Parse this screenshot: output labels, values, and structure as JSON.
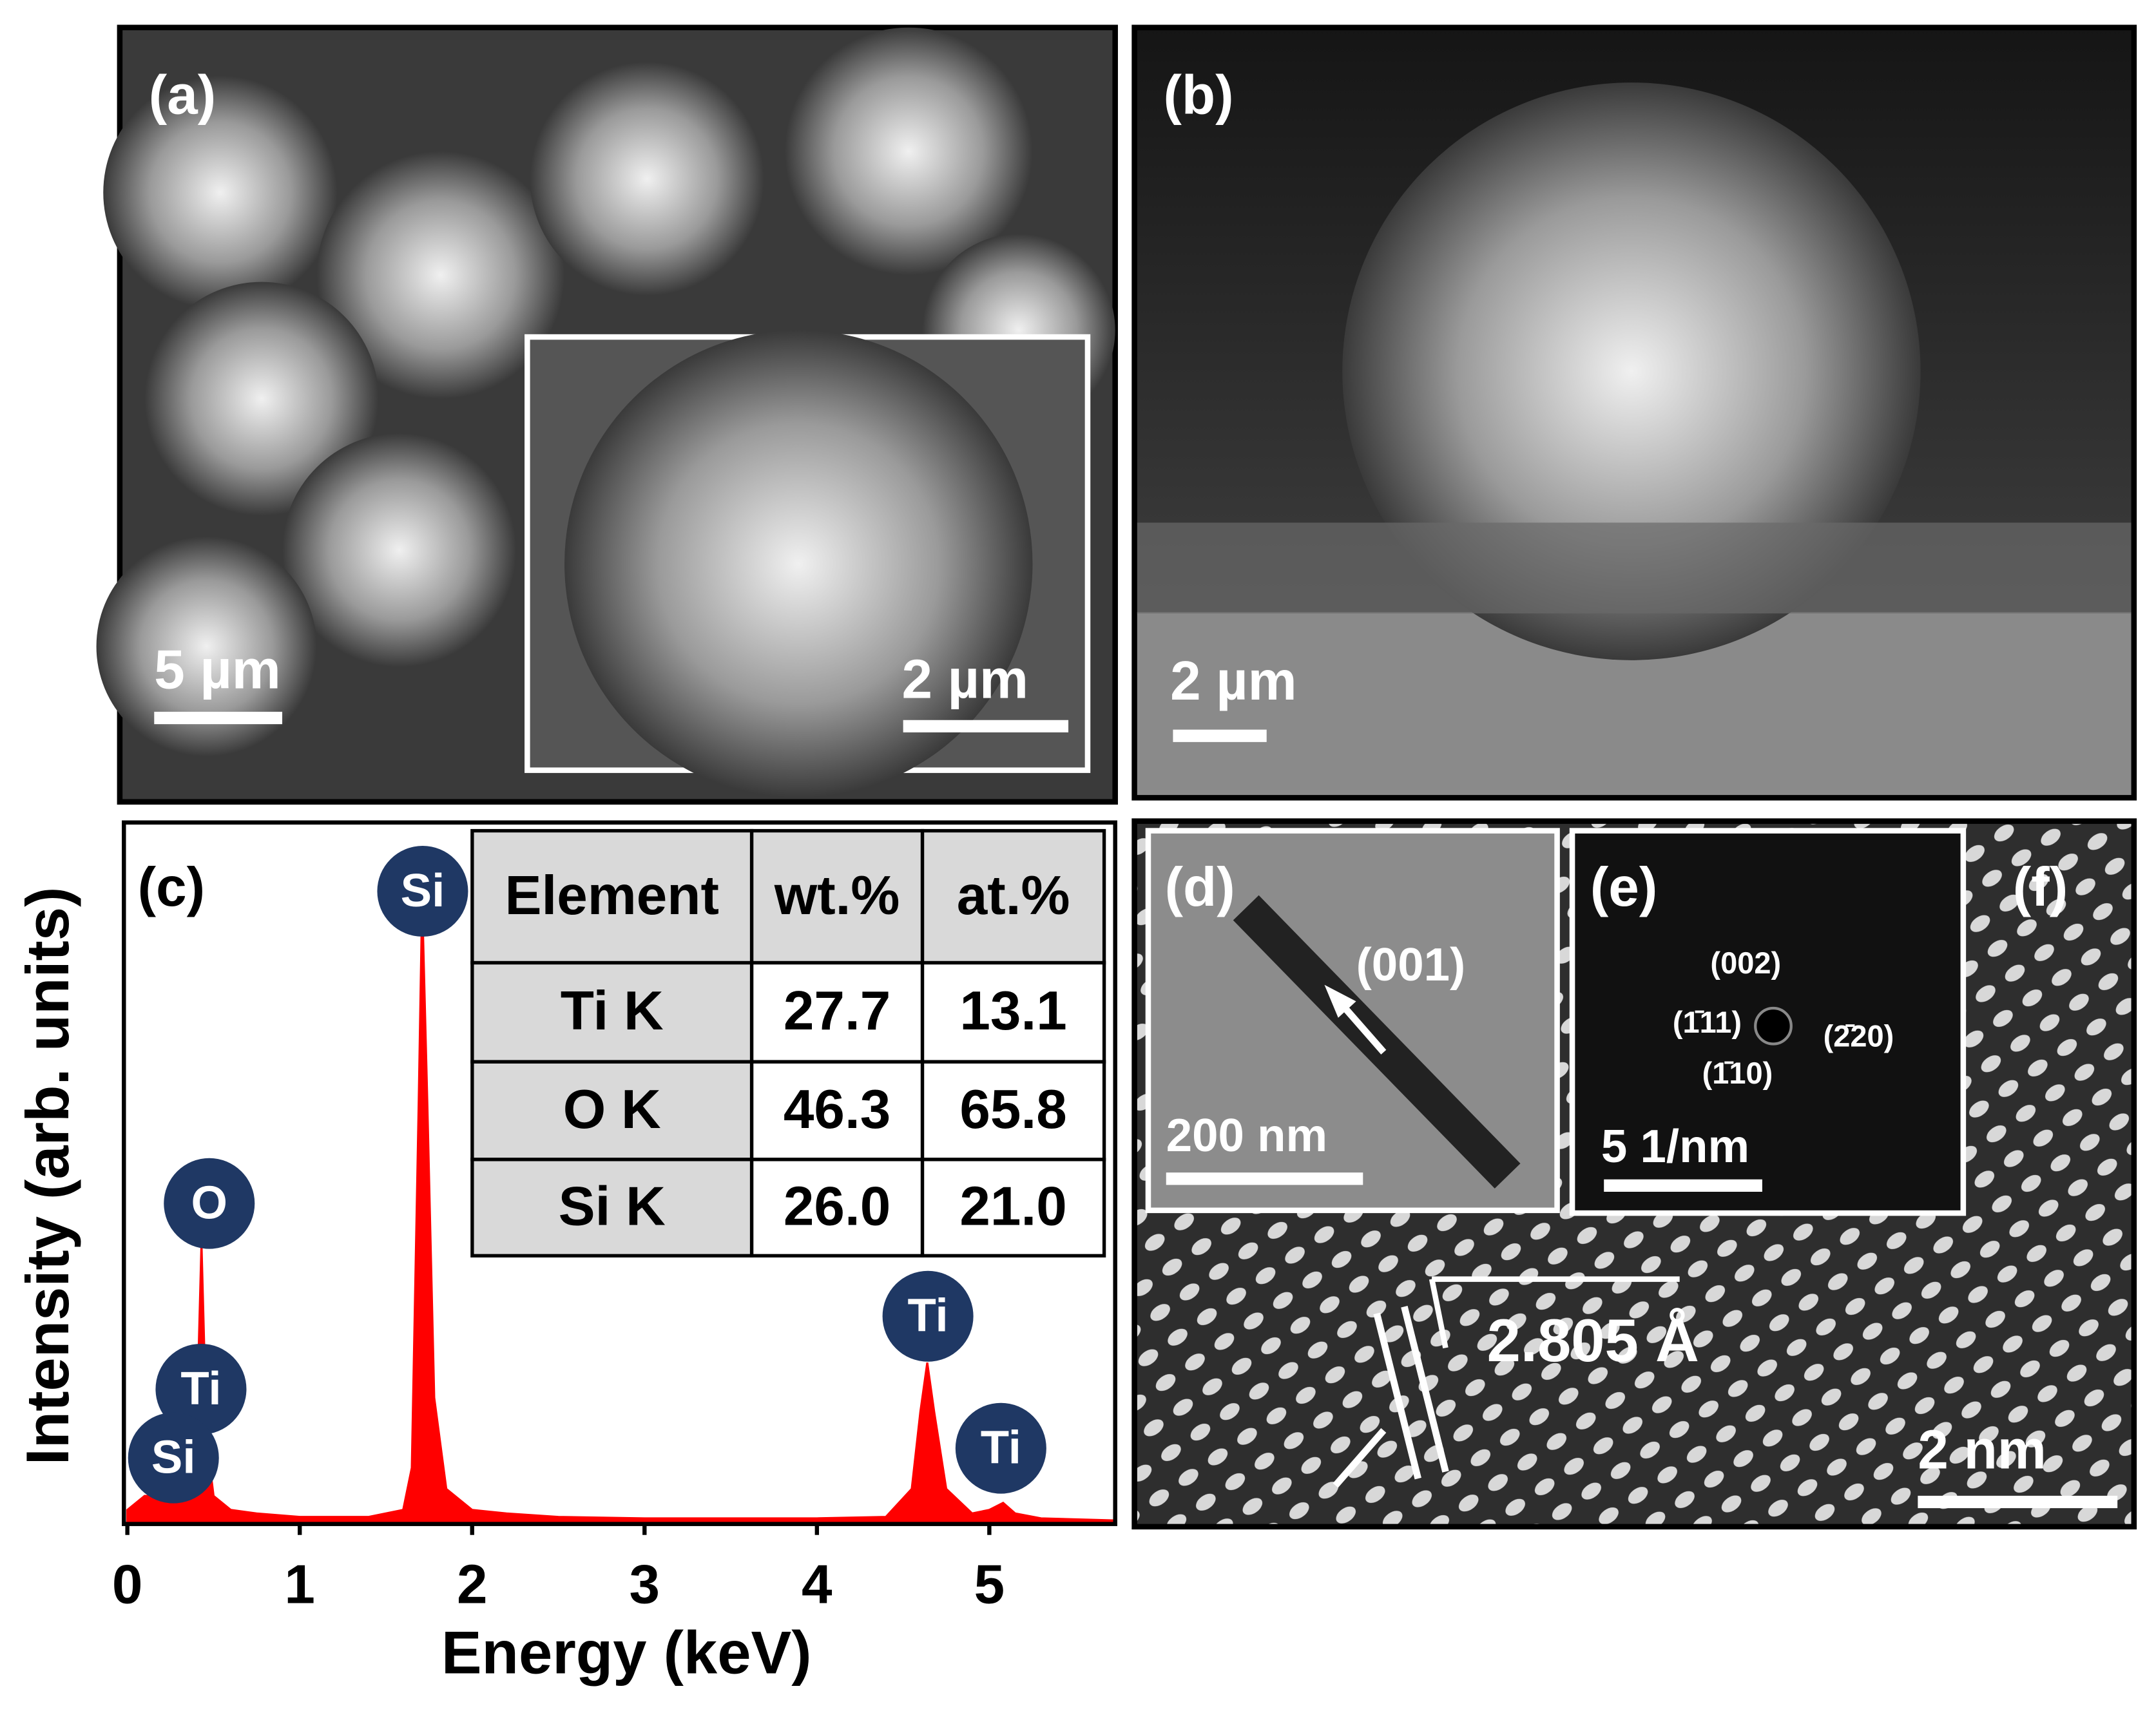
{
  "panels": {
    "a": {
      "label": "(a)",
      "scale": "5 µm",
      "inset_scale": "2 µm"
    },
    "b": {
      "label": "(b)",
      "scale": "2 µm"
    },
    "c": {
      "label": "(c)"
    },
    "d": {
      "label": "(d)",
      "direction": "(001)",
      "scale": "200 nm"
    },
    "e": {
      "label": "(e)",
      "spots": [
        "(002)",
        "(1̄11)",
        "(1̄10)",
        "(2̄20)"
      ],
      "scale": "5 1/nm"
    },
    "f": {
      "label": "(f)",
      "spacing": "2.805 Å",
      "scale": "2 nm"
    }
  },
  "chart_data": {
    "type": "area",
    "xlabel": "Energy (keV)",
    "ylabel": "Intensity (arb. units)",
    "x": [
      0,
      0.05,
      0.1,
      0.15,
      0.2,
      0.25,
      0.3,
      0.35,
      0.4,
      0.43,
      0.46,
      0.5,
      0.6,
      0.75,
      1.0,
      1.4,
      1.6,
      1.65,
      1.69,
      1.71,
      1.74,
      1.78,
      1.85,
      2.0,
      2.2,
      2.5,
      3,
      3.5,
      4,
      4.4,
      4.55,
      4.6,
      4.64,
      4.68,
      4.75,
      4.9,
      5.0,
      5.08,
      5.15,
      5.3,
      5.73
    ],
    "values": [
      2,
      3,
      4,
      4,
      4.5,
      4,
      3.5,
      4,
      12,
      40,
      12,
      4,
      2,
      1.5,
      1,
      1,
      2,
      8,
      60,
      89,
      60,
      18,
      5,
      2,
      1.5,
      1,
      0.8,
      0.8,
      0.8,
      1,
      5,
      16,
      23,
      16,
      5,
      1.5,
      2,
      3,
      1.5,
      0.8,
      0.5
    ],
    "color": "#ff0000",
    "xlim": [
      -0.02,
      5.73
    ],
    "ylim": [
      0,
      100
    ],
    "xticks": [
      0,
      1,
      2,
      3,
      4,
      5
    ],
    "peak_labels": [
      "Si",
      "O",
      "Ti",
      "Si",
      "Ti",
      "Ti"
    ],
    "table": {
      "header": [
        "Element",
        "wt.%",
        "at.%"
      ],
      "rows": [
        [
          "Ti K",
          "27.7",
          "13.1"
        ],
        [
          "O K",
          "46.3",
          "65.8"
        ],
        [
          "Si K",
          "26.0",
          "21.0"
        ]
      ]
    }
  }
}
